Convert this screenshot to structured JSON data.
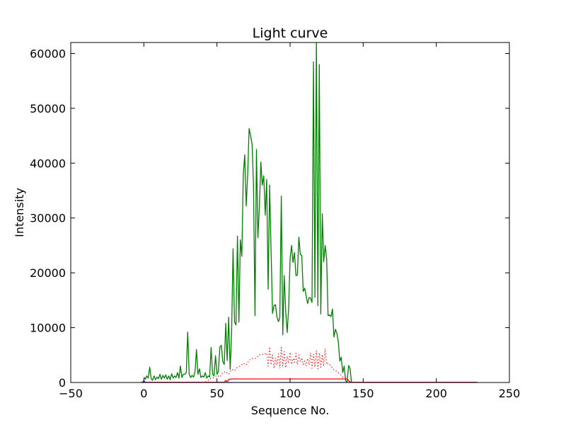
{
  "chart_data": {
    "type": "line",
    "title": "Light curve",
    "xlabel": "Sequence No.",
    "ylabel": "Intensity",
    "xlim": [
      -50,
      250
    ],
    "ylim": [
      0,
      62000
    ],
    "xticks": [
      -50,
      0,
      50,
      100,
      150,
      200,
      250
    ],
    "xtick_labels": [
      "−50",
      "0",
      "50",
      "100",
      "150",
      "200",
      "250"
    ],
    "yticks": [
      0,
      10000,
      20000,
      30000,
      40000,
      50000,
      60000
    ],
    "ytick_labels": [
      "0",
      "10000",
      "20000",
      "30000",
      "40000",
      "50000",
      "60000"
    ],
    "grid": false,
    "series": [
      {
        "style": "solid",
        "color": "#007f00",
        "points": [
          [
            0,
            1000
          ],
          [
            1,
            600
          ],
          [
            2,
            1200
          ],
          [
            3,
            800
          ],
          [
            4,
            2800
          ],
          [
            5,
            700
          ],
          [
            6,
            400
          ],
          [
            7,
            1200
          ],
          [
            8,
            500
          ],
          [
            9,
            1000
          ],
          [
            10,
            700
          ],
          [
            11,
            1500
          ],
          [
            12,
            600
          ],
          [
            13,
            1300
          ],
          [
            14,
            800
          ],
          [
            15,
            1400
          ],
          [
            16,
            600
          ],
          [
            17,
            1200
          ],
          [
            18,
            500
          ],
          [
            19,
            1600
          ],
          [
            20,
            800
          ],
          [
            21,
            1200
          ],
          [
            22,
            900
          ],
          [
            23,
            1800
          ],
          [
            24,
            800
          ],
          [
            25,
            3000
          ],
          [
            26,
            900
          ],
          [
            27,
            1500
          ],
          [
            28,
            1500
          ],
          [
            29,
            1800
          ],
          [
            30,
            9200
          ],
          [
            31,
            1500
          ],
          [
            32,
            900
          ],
          [
            33,
            1300
          ],
          [
            34,
            1000
          ],
          [
            35,
            2000
          ],
          [
            36,
            6000
          ],
          [
            37,
            1500
          ],
          [
            38,
            2500
          ],
          [
            39,
            900
          ],
          [
            40,
            1200
          ],
          [
            41,
            1000
          ],
          [
            42,
            1800
          ],
          [
            43,
            800
          ],
          [
            44,
            1200
          ],
          [
            45,
            1000
          ],
          [
            46,
            6400
          ],
          [
            47,
            1500
          ],
          [
            48,
            1200
          ],
          [
            49,
            4900
          ],
          [
            50,
            1500
          ],
          [
            51,
            2000
          ],
          [
            52,
            6500
          ],
          [
            53,
            6800
          ],
          [
            54,
            3800
          ],
          [
            55,
            3300
          ],
          [
            56,
            10800
          ],
          [
            57,
            4000
          ],
          [
            58,
            11900
          ],
          [
            59,
            2400
          ],
          [
            60,
            8700
          ],
          [
            61,
            24400
          ],
          [
            62,
            11000
          ],
          [
            63,
            10500
          ],
          [
            64,
            26700
          ],
          [
            65,
            11000
          ],
          [
            66,
            26000
          ],
          [
            67,
            23000
          ],
          [
            68,
            38000
          ],
          [
            69,
            41500
          ],
          [
            70,
            32200
          ],
          [
            71,
            38000
          ],
          [
            72,
            46300
          ],
          [
            73,
            45000
          ],
          [
            74,
            43500
          ],
          [
            75,
            36000
          ],
          [
            76,
            12200
          ],
          [
            77,
            42500
          ],
          [
            78,
            26400
          ],
          [
            79,
            32000
          ],
          [
            80,
            40200
          ],
          [
            81,
            36000
          ],
          [
            82,
            37700
          ],
          [
            83,
            30500
          ],
          [
            84,
            37000
          ],
          [
            85,
            17000
          ],
          [
            86,
            36000
          ],
          [
            87,
            24300
          ],
          [
            88,
            12600
          ],
          [
            89,
            14000
          ],
          [
            90,
            14200
          ],
          [
            91,
            12000
          ],
          [
            92,
            11100
          ],
          [
            93,
            11800
          ],
          [
            94,
            34000
          ],
          [
            95,
            8700
          ],
          [
            96,
            19500
          ],
          [
            97,
            13000
          ],
          [
            98,
            9100
          ],
          [
            99,
            13400
          ],
          [
            100,
            22500
          ],
          [
            101,
            25000
          ],
          [
            102,
            21900
          ],
          [
            103,
            23700
          ],
          [
            104,
            19500
          ],
          [
            105,
            19600
          ],
          [
            106,
            26500
          ],
          [
            107,
            23300
          ],
          [
            108,
            23200
          ],
          [
            109,
            16600
          ],
          [
            110,
            17200
          ],
          [
            111,
            15800
          ],
          [
            112,
            14400
          ],
          [
            113,
            15500
          ],
          [
            114,
            15400
          ],
          [
            115,
            14600
          ],
          [
            116,
            58500
          ],
          [
            117,
            15500
          ],
          [
            118,
            62500
          ],
          [
            119,
            14000
          ],
          [
            120,
            58000
          ],
          [
            121,
            12500
          ],
          [
            122,
            30800
          ],
          [
            123,
            22000
          ],
          [
            124,
            25000
          ],
          [
            125,
            22500
          ],
          [
            126,
            12200
          ],
          [
            127,
            12300
          ],
          [
            128,
            12000
          ],
          [
            129,
            13400
          ],
          [
            130,
            8300
          ],
          [
            131,
            9700
          ],
          [
            132,
            9000
          ],
          [
            133,
            7400
          ],
          [
            134,
            3900
          ],
          [
            135,
            4600
          ],
          [
            136,
            1800
          ],
          [
            137,
            3000
          ],
          [
            138,
            300
          ],
          [
            139,
            100
          ],
          [
            140,
            3100
          ],
          [
            141,
            2600
          ],
          [
            142,
            0
          ],
          [
            143,
            0
          ],
          [
            150,
            0
          ],
          [
            175,
            0
          ],
          [
            200,
            0
          ],
          [
            228,
            0
          ]
        ]
      },
      {
        "style": "dotted",
        "color": "#ff0000",
        "points": [
          [
            42,
            100
          ],
          [
            44,
            400
          ],
          [
            46,
            800
          ],
          [
            48,
            900
          ],
          [
            50,
            1300
          ],
          [
            52,
            1000
          ],
          [
            54,
            1800
          ],
          [
            56,
            2000
          ],
          [
            58,
            1500
          ],
          [
            60,
            2400
          ],
          [
            62,
            2200
          ],
          [
            64,
            2800
          ],
          [
            66,
            3000
          ],
          [
            68,
            3500
          ],
          [
            70,
            3200
          ],
          [
            72,
            4000
          ],
          [
            74,
            4400
          ],
          [
            76,
            4300
          ],
          [
            78,
            4800
          ],
          [
            80,
            5200
          ],
          [
            82,
            5100
          ],
          [
            84,
            5400
          ],
          [
            85,
            3000
          ],
          [
            86,
            6500
          ],
          [
            87,
            3200
          ],
          [
            88,
            5000
          ],
          [
            89,
            2600
          ],
          [
            90,
            4500
          ],
          [
            91,
            3200
          ],
          [
            92,
            5200
          ],
          [
            93,
            2600
          ],
          [
            94,
            6400
          ],
          [
            95,
            3000
          ],
          [
            96,
            5600
          ],
          [
            97,
            2700
          ],
          [
            98,
            4800
          ],
          [
            99,
            3500
          ],
          [
            100,
            5500
          ],
          [
            101,
            3300
          ],
          [
            102,
            4400
          ],
          [
            103,
            3700
          ],
          [
            104,
            5300
          ],
          [
            105,
            3300
          ],
          [
            106,
            5000
          ],
          [
            107,
            3800
          ],
          [
            108,
            4500
          ],
          [
            109,
            3300
          ],
          [
            110,
            3900
          ],
          [
            111,
            3000
          ],
          [
            112,
            4400
          ],
          [
            113,
            3200
          ],
          [
            114,
            5400
          ],
          [
            115,
            2600
          ],
          [
            116,
            5200
          ],
          [
            117,
            2800
          ],
          [
            118,
            5800
          ],
          [
            119,
            2500
          ],
          [
            120,
            5400
          ],
          [
            121,
            2800
          ],
          [
            122,
            5100
          ],
          [
            123,
            3000
          ],
          [
            124,
            6200
          ],
          [
            125,
            3300
          ],
          [
            126,
            3500
          ],
          [
            128,
            3000
          ],
          [
            130,
            2300
          ],
          [
            132,
            2000
          ],
          [
            134,
            1600
          ],
          [
            136,
            1000
          ],
          [
            138,
            800
          ],
          [
            140,
            300
          ],
          [
            142,
            0
          ]
        ]
      },
      {
        "style": "solid",
        "color": "#ff0000",
        "points": [
          [
            -2,
            50
          ],
          [
            55,
            50
          ],
          [
            56,
            400
          ],
          [
            57,
            100
          ],
          [
            58,
            550
          ],
          [
            60,
            650
          ],
          [
            100,
            650
          ],
          [
            139,
            650
          ],
          [
            140,
            350
          ],
          [
            141,
            50
          ],
          [
            228,
            50
          ]
        ]
      },
      {
        "style": "solid",
        "color": "#0000ff",
        "points": [
          [
            -1,
            0
          ],
          [
            0,
            300
          ],
          [
            1,
            0
          ],
          [
            228,
            0
          ]
        ]
      }
    ]
  }
}
